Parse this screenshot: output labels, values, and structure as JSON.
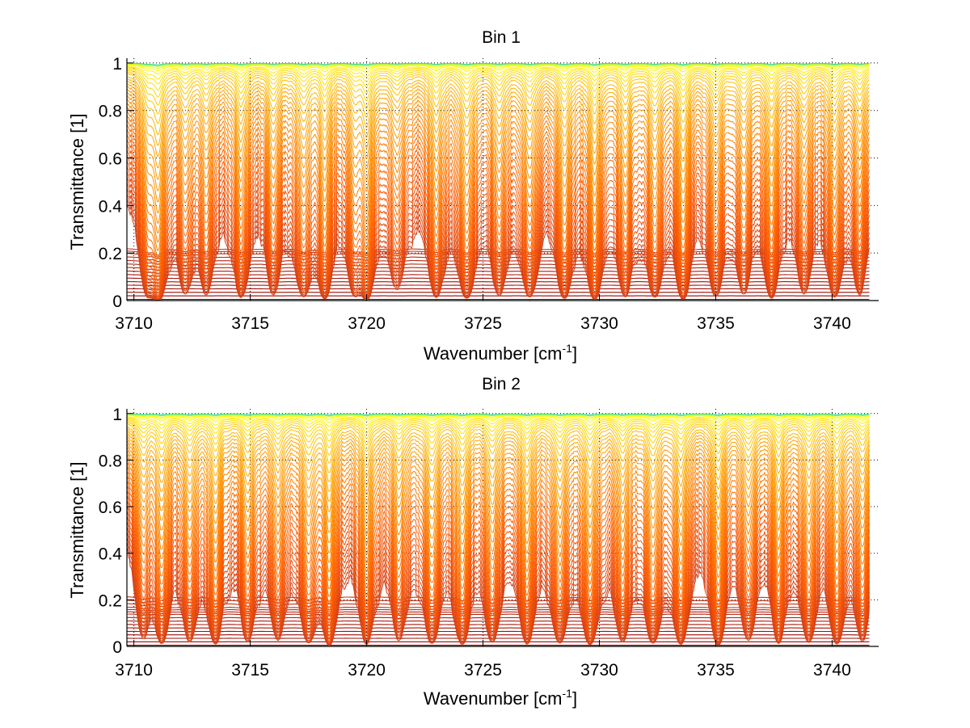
{
  "chart_data": [
    {
      "type": "line",
      "title": "Bin 1",
      "xlabel": "Wavenumber [cm",
      "xlabel_superscript": "-1",
      "xlabel_suffix": "]",
      "ylabel": "Transmittance [1]",
      "xlim": [
        3709.7,
        3742.0
      ],
      "ylim": [
        0,
        1.02
      ],
      "x_range_data": [
        3709.7,
        3741.6
      ],
      "xticks": [
        3710,
        3715,
        3720,
        3725,
        3730,
        3735,
        3740
      ],
      "xtick_labels": [
        "3710",
        "3715",
        "3720",
        "3725",
        "3730",
        "3735",
        "3740"
      ],
      "yticks": [
        0,
        0.2,
        0.4,
        0.6,
        0.8,
        1
      ],
      "ytick_labels": [
        "0",
        "0.2",
        "0.4",
        "0.6",
        "0.8",
        "1"
      ],
      "grid": true,
      "legend": "none",
      "series_count": 60,
      "series_description": "Family of transmittance spectra; each curve is a continuum level scaled by absorption-line depth",
      "continuum_levels": [
        0.005,
        0.02,
        0.035,
        0.05,
        0.065,
        0.08,
        0.095,
        0.11,
        0.125,
        0.14,
        0.155,
        0.17,
        0.185,
        0.2,
        0.21,
        0.22,
        0.99,
        0.99,
        0.99,
        0.99,
        0.99,
        0.99,
        0.99,
        0.99,
        0.99,
        0.99,
        0.99,
        0.99,
        0.99,
        0.99,
        0.99,
        0.99,
        0.99,
        0.99,
        0.99,
        0.99,
        0.99,
        0.99,
        0.99,
        0.99,
        0.99,
        0.99,
        0.99,
        0.99,
        0.99,
        0.99,
        0.995,
        0.995,
        0.995,
        0.995,
        0.995,
        0.995,
        0.995,
        0.998,
        0.998,
        0.998,
        0.999,
        0.999,
        0.999,
        1.0
      ],
      "absorption_lines": [
        {
          "center": 3710.6,
          "strength": 0.9,
          "width": 0.25
        },
        {
          "center": 3711.05,
          "strength": 1.6,
          "width": 0.22
        },
        {
          "center": 3712.2,
          "strength": 0.8,
          "width": 0.25
        },
        {
          "center": 3713.1,
          "strength": 0.9,
          "width": 0.25
        },
        {
          "center": 3714.6,
          "strength": 1.1,
          "width": 0.25
        },
        {
          "center": 3716.0,
          "strength": 0.9,
          "width": 0.25
        },
        {
          "center": 3717.3,
          "strength": 1.0,
          "width": 0.25
        },
        {
          "center": 3718.2,
          "strength": 1.2,
          "width": 0.22
        },
        {
          "center": 3719.5,
          "strength": 0.8,
          "width": 0.25
        },
        {
          "center": 3720.0,
          "strength": 1.3,
          "width": 0.22
        },
        {
          "center": 3721.3,
          "strength": 0.7,
          "width": 0.3
        },
        {
          "center": 3723.0,
          "strength": 1.1,
          "width": 0.25
        },
        {
          "center": 3724.3,
          "strength": 1.2,
          "width": 0.25
        },
        {
          "center": 3725.7,
          "strength": 1.0,
          "width": 0.25
        },
        {
          "center": 3727.0,
          "strength": 1.1,
          "width": 0.25
        },
        {
          "center": 3728.5,
          "strength": 1.2,
          "width": 0.25
        },
        {
          "center": 3729.8,
          "strength": 1.3,
          "width": 0.22
        },
        {
          "center": 3731.1,
          "strength": 1.0,
          "width": 0.25
        },
        {
          "center": 3732.4,
          "strength": 1.1,
          "width": 0.25
        },
        {
          "center": 3733.6,
          "strength": 1.3,
          "width": 0.22
        },
        {
          "center": 3735.0,
          "strength": 1.0,
          "width": 0.25
        },
        {
          "center": 3736.2,
          "strength": 0.9,
          "width": 0.25
        },
        {
          "center": 3737.4,
          "strength": 1.2,
          "width": 0.22
        },
        {
          "center": 3738.8,
          "strength": 0.9,
          "width": 0.25
        },
        {
          "center": 3740.1,
          "strength": 1.1,
          "width": 0.25
        },
        {
          "center": 3741.2,
          "strength": 0.9,
          "width": 0.25
        }
      ]
    },
    {
      "type": "line",
      "title": "Bin 2",
      "xlabel": "Wavenumber [cm",
      "xlabel_superscript": "-1",
      "xlabel_suffix": "]",
      "ylabel": "Transmittance [1]",
      "xlim": [
        3709.7,
        3742.0
      ],
      "ylim": [
        0,
        1.02
      ],
      "x_range_data": [
        3709.7,
        3741.6
      ],
      "xticks": [
        3710,
        3715,
        3720,
        3725,
        3730,
        3735,
        3740
      ],
      "xtick_labels": [
        "3710",
        "3715",
        "3720",
        "3725",
        "3730",
        "3735",
        "3740"
      ],
      "yticks": [
        0,
        0.2,
        0.4,
        0.6,
        0.8,
        1
      ],
      "ytick_labels": [
        "0",
        "0.2",
        "0.4",
        "0.6",
        "0.8",
        "1"
      ],
      "grid": true,
      "legend": "none",
      "series_count": 60,
      "series_description": "Family of transmittance spectra; each curve is a continuum level scaled by absorption-line depth",
      "continuum_levels": [
        0.005,
        0.02,
        0.035,
        0.05,
        0.065,
        0.08,
        0.095,
        0.11,
        0.125,
        0.14,
        0.15,
        0.16,
        0.17,
        0.185,
        0.2,
        0.215,
        0.99,
        0.99,
        0.99,
        0.99,
        0.99,
        0.99,
        0.99,
        0.99,
        0.99,
        0.99,
        0.99,
        0.99,
        0.99,
        0.99,
        0.99,
        0.99,
        0.99,
        0.99,
        0.99,
        0.99,
        0.99,
        0.99,
        0.99,
        0.99,
        0.99,
        0.99,
        0.99,
        0.99,
        0.99,
        0.99,
        0.995,
        0.995,
        0.995,
        0.995,
        0.995,
        0.995,
        0.995,
        0.998,
        0.998,
        0.998,
        0.999,
        0.999,
        0.999,
        1.0
      ],
      "absorption_lines": [
        {
          "center": 3710.4,
          "strength": 0.8,
          "width": 0.25
        },
        {
          "center": 3711.2,
          "strength": 1.1,
          "width": 0.22
        },
        {
          "center": 3712.4,
          "strength": 0.9,
          "width": 0.25
        },
        {
          "center": 3713.5,
          "strength": 1.2,
          "width": 0.22
        },
        {
          "center": 3714.9,
          "strength": 1.0,
          "width": 0.25
        },
        {
          "center": 3716.2,
          "strength": 0.9,
          "width": 0.25
        },
        {
          "center": 3717.5,
          "strength": 1.0,
          "width": 0.25
        },
        {
          "center": 3718.4,
          "strength": 1.3,
          "width": 0.22
        },
        {
          "center": 3720.0,
          "strength": 1.2,
          "width": 0.22
        },
        {
          "center": 3721.4,
          "strength": 0.9,
          "width": 0.25
        },
        {
          "center": 3722.8,
          "strength": 1.1,
          "width": 0.25
        },
        {
          "center": 3724.1,
          "strength": 1.2,
          "width": 0.25
        },
        {
          "center": 3725.4,
          "strength": 1.0,
          "width": 0.25
        },
        {
          "center": 3726.9,
          "strength": 1.2,
          "width": 0.22
        },
        {
          "center": 3728.3,
          "strength": 1.1,
          "width": 0.25
        },
        {
          "center": 3729.6,
          "strength": 1.2,
          "width": 0.25
        },
        {
          "center": 3731.0,
          "strength": 1.0,
          "width": 0.25
        },
        {
          "center": 3732.3,
          "strength": 1.1,
          "width": 0.25
        },
        {
          "center": 3733.5,
          "strength": 1.2,
          "width": 0.22
        },
        {
          "center": 3735.1,
          "strength": 1.3,
          "width": 0.22
        },
        {
          "center": 3736.4,
          "strength": 0.9,
          "width": 0.25
        },
        {
          "center": 3737.7,
          "strength": 1.1,
          "width": 0.22
        },
        {
          "center": 3739.0,
          "strength": 1.0,
          "width": 0.25
        },
        {
          "center": 3740.2,
          "strength": 1.2,
          "width": 0.22
        },
        {
          "center": 3741.3,
          "strength": 1.0,
          "width": 0.25
        }
      ]
    }
  ],
  "colors": {
    "low": "#8b0000",
    "mid_low": "#cc3a1a",
    "mid": "#ff5a00",
    "mid_high": "#ffa500",
    "high": "#ffff00",
    "top": "#40e0a0",
    "axis": "#000000",
    "grid": "#000000"
  }
}
